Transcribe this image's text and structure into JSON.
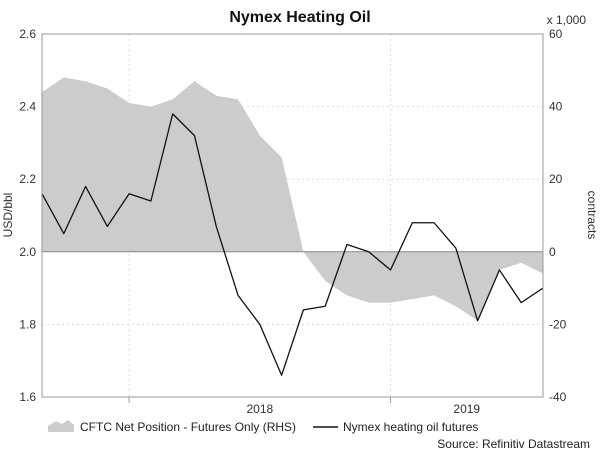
{
  "chart_data": {
    "type": "area+line",
    "title": "Nymex Heating Oil",
    "ylabel_left": "USD/bbl",
    "ylabel_right": "contracts",
    "right_unit_note": "x 1,000",
    "source": "Source: Refinitiv Datastream",
    "ylim_left": [
      1.6,
      2.6
    ],
    "ylim_right": [
      -40,
      60
    ],
    "yticks_left": [
      "1.6",
      "1.8",
      "2.0",
      "2.2",
      "2.4",
      "2.6"
    ],
    "yticks_right": [
      "-40",
      "-20",
      "0",
      "20",
      "40",
      "60"
    ],
    "xticks": [
      "2018",
      "2019"
    ],
    "xrange": [
      "2017-09",
      "2019-08"
    ],
    "grid": true,
    "legend_position": "bottom",
    "colors": {
      "area": "#cccccc",
      "line": "#111111",
      "grid": "#dddddd"
    },
    "series": [
      {
        "name": "CFTC Net Position - Futures Only (RHS)",
        "axis": "right",
        "kind": "area",
        "x": [
          "2017-09",
          "2017-10",
          "2017-11",
          "2017-12",
          "2018-01",
          "2018-02",
          "2018-03",
          "2018-04",
          "2018-05",
          "2018-06",
          "2018-07",
          "2018-08",
          "2018-09",
          "2018-10",
          "2018-11",
          "2018-12",
          "2019-01",
          "2019-02",
          "2019-03",
          "2019-04",
          "2019-05",
          "2019-06",
          "2019-07",
          "2019-08"
        ],
        "values": [
          44,
          48,
          47,
          45,
          41,
          40,
          42,
          47,
          43,
          42,
          32,
          26,
          0,
          -8,
          -12,
          -14,
          -14,
          -13,
          -12,
          -15,
          -19,
          -5,
          -3,
          -6
        ]
      },
      {
        "name": "Nymex heating oil futures",
        "axis": "left",
        "kind": "line",
        "x": [
          "2017-09",
          "2017-10",
          "2017-11",
          "2017-12",
          "2018-01",
          "2018-02",
          "2018-03",
          "2018-04",
          "2018-05",
          "2018-06",
          "2018-07",
          "2018-08",
          "2018-09",
          "2018-10",
          "2018-11",
          "2018-12",
          "2019-01",
          "2019-02",
          "2019-03",
          "2019-04",
          "2019-05",
          "2019-06",
          "2019-07",
          "2019-08"
        ],
        "values": [
          2.16,
          2.05,
          2.18,
          2.07,
          2.16,
          2.14,
          2.38,
          2.32,
          2.07,
          1.88,
          1.8,
          1.66,
          1.84,
          1.85,
          2.02,
          2.0,
          1.95,
          2.08,
          2.08,
          2.01,
          1.81,
          1.95,
          1.86,
          1.9
        ]
      }
    ]
  }
}
